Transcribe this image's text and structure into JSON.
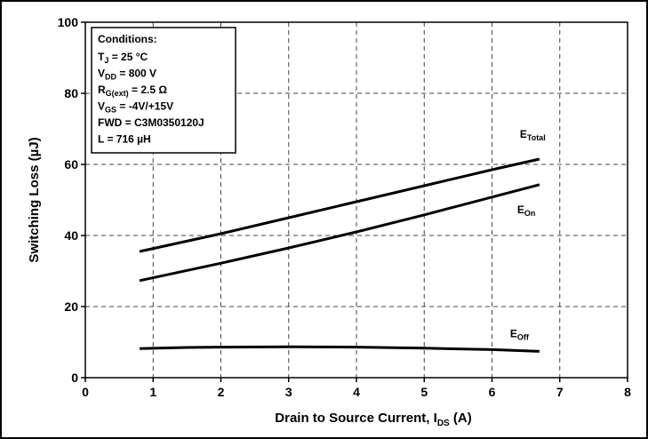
{
  "chart_data": {
    "type": "line",
    "xlabel": {
      "main": "Drain to Source Current, I",
      "sub": "DS",
      "unit": " (A)"
    },
    "ylabel": "Switching Loss (µJ)",
    "xlim": [
      0,
      8
    ],
    "ylim": [
      0,
      100
    ],
    "xticks": [
      0,
      1,
      2,
      3,
      4,
      5,
      6,
      7,
      8
    ],
    "yticks": [
      0,
      20,
      40,
      60,
      80,
      100
    ],
    "grid": true,
    "series": [
      {
        "name": {
          "main": "E",
          "sub": "Total"
        },
        "x": [
          0.8,
          2,
          3,
          4,
          5,
          6,
          6.7
        ],
        "y": [
          35.5,
          40.5,
          45,
          49.5,
          54,
          58.5,
          61.5
        ]
      },
      {
        "name": {
          "main": "E",
          "sub": "On"
        },
        "x": [
          0.8,
          2,
          3,
          4,
          5,
          6,
          6.7
        ],
        "y": [
          27.3,
          32.2,
          36.5,
          41,
          45.8,
          50.8,
          54.3
        ]
      },
      {
        "name": {
          "main": "E",
          "sub": "Off"
        },
        "x": [
          0.8,
          1.5,
          2,
          3,
          4,
          5,
          6,
          6.7
        ],
        "y": [
          8.2,
          8.5,
          8.6,
          8.7,
          8.6,
          8.3,
          7.9,
          7.4
        ]
      }
    ],
    "conditions": {
      "heading": "Conditions:",
      "lines": [
        {
          "pre": "T",
          "sub": "J",
          "post": " = 25 °C"
        },
        {
          "pre": "V",
          "sub": "DD",
          "post": " = 800 V"
        },
        {
          "pre": "R",
          "sub": "G(ext)",
          "post": " = 2.5 Ω"
        },
        {
          "pre": "V",
          "sub": "GS",
          "post": " = -4V/+15V"
        },
        {
          "pre": "FWD = C3M0350120J",
          "sub": "",
          "post": ""
        },
        {
          "pre": "L = 716 µH",
          "sub": "",
          "post": ""
        }
      ]
    }
  }
}
